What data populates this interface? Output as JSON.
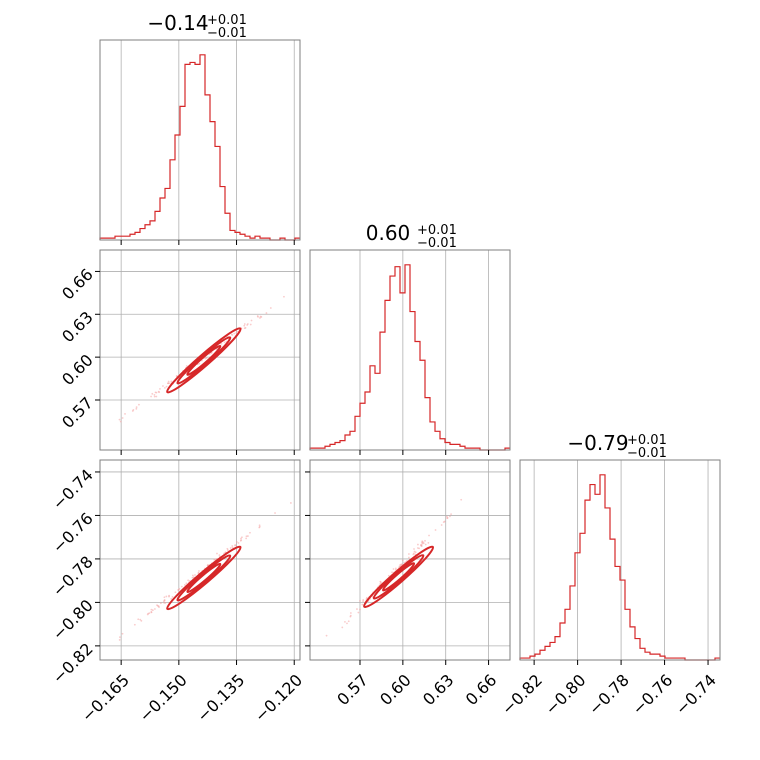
{
  "chart_data": {
    "type": "corner",
    "color": "#d62728",
    "parameters": [
      {
        "title_value": "−0.14",
        "title_plus": "+0.01",
        "title_minus": "−0.01",
        "range": [
          -0.1705,
          -0.1185
        ],
        "ticks": [
          -0.165,
          -0.15,
          -0.135,
          -0.12
        ],
        "tick_labels": [
          "−0.165",
          "−0.150",
          "−0.135",
          "−0.120"
        ],
        "histogram": {
          "start": -0.1705,
          "end": -0.1185,
          "counts": [
            1,
            1,
            1,
            2,
            2,
            2,
            3,
            4,
            6,
            8,
            10,
            15,
            22,
            27,
            42,
            55,
            70,
            92,
            93,
            92,
            97,
            76,
            62,
            49,
            28,
            14,
            5,
            4,
            3,
            2,
            1,
            2,
            1,
            1,
            0,
            0,
            1,
            0,
            0,
            1
          ]
        }
      },
      {
        "title_value": "0.60",
        "title_plus": "+0.01",
        "title_minus": "−0.01",
        "range": [
          0.535,
          0.675
        ],
        "ticks": [
          0.57,
          0.6,
          0.63,
          0.66
        ],
        "tick_labels": [
          "0.57",
          "0.60",
          "0.63",
          "0.66"
        ],
        "histogram": {
          "start": 0.535,
          "end": 0.675,
          "counts": [
            1,
            1,
            1,
            2,
            3,
            4,
            5,
            8,
            10,
            18,
            25,
            31,
            45,
            41,
            63,
            80,
            93,
            98,
            84,
            99,
            74,
            58,
            48,
            28,
            15,
            10,
            6,
            4,
            3,
            3,
            2,
            1,
            1,
            1,
            0,
            0,
            0,
            0,
            0,
            1
          ]
        }
      },
      {
        "title_value": "−0.79",
        "title_plus": "+0.01",
        "title_minus": "−0.01",
        "range": [
          -0.8265,
          -0.7345
        ],
        "ticks": [
          -0.82,
          -0.8,
          -0.78,
          -0.76,
          -0.74
        ],
        "tick_labels": [
          "−0.82",
          "−0.80",
          "−0.78",
          "−0.76",
          "−0.74"
        ],
        "histogram": {
          "start": -0.8265,
          "end": -0.7345,
          "counts": [
            1,
            1,
            2,
            3,
            5,
            7,
            9,
            12,
            19,
            26,
            38,
            55,
            65,
            82,
            90,
            85,
            95,
            78,
            62,
            48,
            41,
            26,
            17,
            11,
            6,
            4,
            3,
            3,
            2,
            1,
            1,
            1,
            1,
            0,
            0,
            0,
            0,
            0,
            0,
            1
          ]
        }
      }
    ],
    "pairs": [
      {
        "x": 0,
        "y": 1,
        "line": {
          "x": [
            -0.1675,
            -0.121
          ],
          "y": [
            0.5515,
            0.645
          ]
        },
        "core": {
          "x": [
            -0.153,
            -0.134
          ],
          "y": [
            0.5755,
            0.62
          ]
        }
      },
      {
        "x": 0,
        "y": 2,
        "line": {
          "x": [
            -0.1675,
            -0.121
          ],
          "y": [
            -0.8185,
            -0.7535
          ]
        },
        "core": {
          "x": [
            -0.153,
            -0.134
          ],
          "y": [
            -0.803,
            -0.7745
          ]
        }
      },
      {
        "x": 1,
        "y": 2,
        "line": {
          "x": [
            0.5455,
            0.643
          ],
          "y": [
            -0.8185,
            -0.7535
          ]
        },
        "core": {
          "x": [
            0.573,
            0.621
          ],
          "y": [
            -0.802,
            -0.7745
          ]
        }
      }
    ],
    "grid": true
  }
}
